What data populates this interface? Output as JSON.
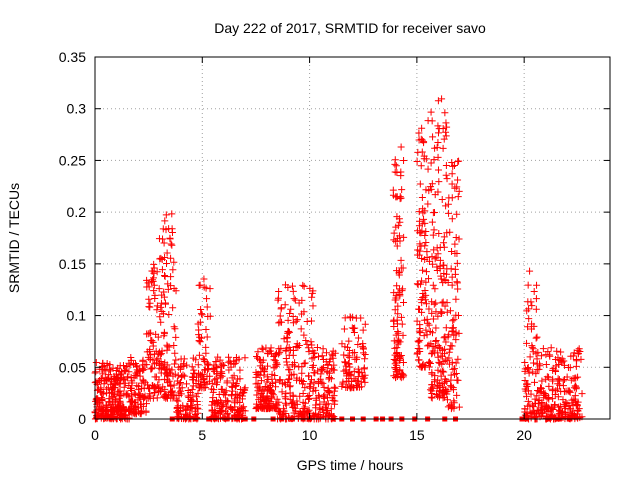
{
  "chart_data": {
    "type": "scatter",
    "title": "Day 222 of 2017, SRMTID for receiver savo",
    "xlabel": "GPS time / hours",
    "ylabel": "SRMTID / TECUs",
    "xlim": [
      0,
      24
    ],
    "ylim": [
      0,
      0.35
    ],
    "grid": true,
    "marker": "+",
    "color": "#ff0000",
    "x_ticks": [
      0,
      5,
      10,
      15,
      20
    ],
    "x_tick_labels": [
      "0",
      "5",
      "10",
      "15",
      "20"
    ],
    "y_ticks": [
      0,
      0.05,
      0.1,
      0.15,
      0.2,
      0.25,
      0.3,
      0.35
    ],
    "y_tick_labels": [
      "0",
      "0.05",
      "0.1",
      "0.15",
      "0.2",
      "0.25",
      "0.3",
      "0.35"
    ],
    "clusters": [
      {
        "x_range": [
          0.0,
          1.6
        ],
        "y_range": [
          0.0,
          0.055
        ],
        "count": 260,
        "seed": 11
      },
      {
        "x_range": [
          1.6,
          2.4
        ],
        "y_range": [
          0.005,
          0.06
        ],
        "count": 90,
        "seed": 12
      },
      {
        "x_range": [
          2.4,
          3.0
        ],
        "y_range": [
          0.02,
          0.15
        ],
        "count": 80,
        "seed": 13
      },
      {
        "x_range": [
          3.0,
          3.8
        ],
        "y_range": [
          0.02,
          0.2
        ],
        "count": 120,
        "seed": 14
      },
      {
        "x_range": [
          3.8,
          4.8
        ],
        "y_range": [
          0.0,
          0.06
        ],
        "count": 110,
        "seed": 15
      },
      {
        "x_range": [
          4.8,
          5.4
        ],
        "y_range": [
          0.03,
          0.155
        ],
        "count": 60,
        "seed": 16
      },
      {
        "x_range": [
          5.4,
          7.0
        ],
        "y_range": [
          0.0,
          0.06
        ],
        "count": 180,
        "seed": 17
      },
      {
        "x_range": [
          7.5,
          8.5
        ],
        "y_range": [
          0.01,
          0.07
        ],
        "count": 140,
        "seed": 18
      },
      {
        "x_range": [
          8.5,
          10.2
        ],
        "y_range": [
          0.0,
          0.13
        ],
        "count": 200,
        "seed": 19
      },
      {
        "x_range": [
          10.2,
          11.2
        ],
        "y_range": [
          0.0,
          0.07
        ],
        "count": 110,
        "seed": 20
      },
      {
        "x_range": [
          11.5,
          12.6
        ],
        "y_range": [
          0.03,
          0.1
        ],
        "count": 90,
        "seed": 21
      },
      {
        "x_range": [
          13.9,
          14.4
        ],
        "y_range": [
          0.04,
          0.27
        ],
        "count": 110,
        "seed": 22
      },
      {
        "x_range": [
          15.0,
          15.6
        ],
        "y_range": [
          0.05,
          0.29
        ],
        "count": 110,
        "seed": 23
      },
      {
        "x_range": [
          15.6,
          16.4
        ],
        "y_range": [
          0.02,
          0.31
        ],
        "count": 160,
        "seed": 24
      },
      {
        "x_range": [
          16.4,
          17.0
        ],
        "y_range": [
          0.01,
          0.25
        ],
        "count": 90,
        "seed": 25
      },
      {
        "x_range": [
          20.0,
          20.6
        ],
        "y_range": [
          0.0,
          0.145
        ],
        "count": 80,
        "seed": 26
      },
      {
        "x_range": [
          20.6,
          22.7
        ],
        "y_range": [
          0.0,
          0.07
        ],
        "count": 220,
        "seed": 27
      }
    ],
    "zero_markers_x": [
      3.6,
      4.7,
      5.3,
      5.6,
      6.1,
      6.6,
      7.0,
      7.4,
      8.3,
      8.7,
      9.2,
      9.7,
      10.0,
      11.1,
      11.5,
      12.0,
      12.5,
      13.1,
      13.4,
      13.8,
      14.3,
      14.9,
      15.5,
      16.3,
      16.8,
      19.9,
      20.1,
      21.1,
      21.6,
      22.1
    ]
  }
}
